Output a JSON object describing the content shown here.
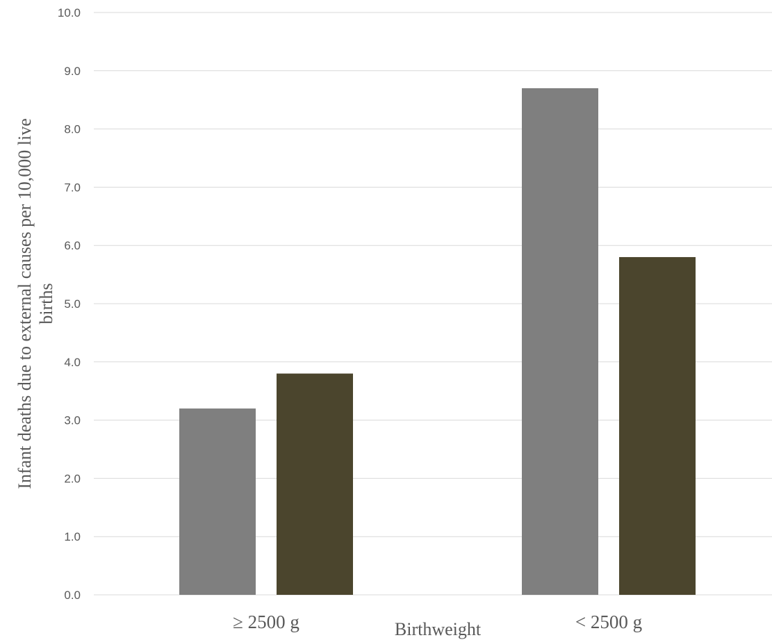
{
  "chart_data": {
    "type": "bar",
    "title": "",
    "xlabel": "Birthweight",
    "ylabel_line1": "Infant deaths due to external causes per 10,000 live",
    "ylabel_line2": "births",
    "categories": [
      "≥ 2500 g",
      "< 2500 g"
    ],
    "series": [
      {
        "values": [
          3.2,
          8.7
        ],
        "color": "#7f7f7f"
      },
      {
        "values": [
          3.8,
          5.8
        ],
        "color": "#4b452d"
      }
    ],
    "ylim": [
      0,
      10
    ],
    "yticks": [
      "0.0",
      "1.0",
      "2.0",
      "3.0",
      "4.0",
      "5.0",
      "6.0",
      "7.0",
      "8.0",
      "9.0",
      "10.0"
    ],
    "grid": true,
    "legend": "none"
  }
}
